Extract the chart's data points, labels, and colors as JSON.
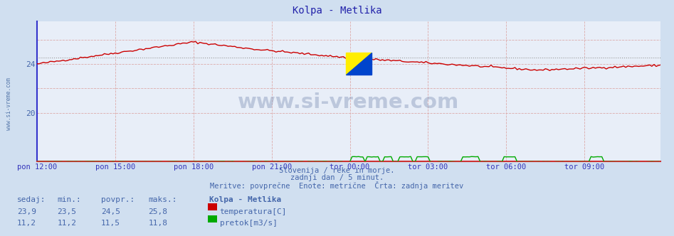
{
  "title": "Kolpa - Metlika",
  "bg_color": "#d0dff0",
  "plot_bg_color": "#e8eef8",
  "temp_color": "#cc0000",
  "flow_color": "#00aa00",
  "avg_line_color": "#999999",
  "x_label_color": "#3333bb",
  "title_color": "#2222aa",
  "text_color": "#4466aa",
  "spine_left_color": "#3333cc",
  "spine_bottom_color": "#cc3333",
  "grid_v_color": "#ddaaaa",
  "grid_h_color": "#ddaaaa",
  "n_points": 288,
  "x_ticks_labels": [
    "pon 12:00",
    "pon 15:00",
    "pon 18:00",
    "pon 21:00",
    "tor 00:00",
    "tor 03:00",
    "tor 06:00",
    "tor 09:00"
  ],
  "x_ticks_pos": [
    0,
    36,
    72,
    108,
    144,
    180,
    216,
    252
  ],
  "ylim_left": [
    16,
    27.5
  ],
  "yticks_left": [
    20,
    24
  ],
  "temp_avg": 24.5,
  "watermark": "www.si-vreme.com",
  "footer_line1": "Slovenija / reke in morje.",
  "footer_line2": "zadnji dan / 5 minut.",
  "footer_line3": "Meritve: povprečne  Enote: metrične  Črta: zadnja meritev",
  "legend_title": "Kolpa - Metlika",
  "legend_temp_label": "temperatura[C]",
  "legend_flow_label": "pretok[m3/s]",
  "stats_headers": [
    "sedaj:",
    "min.:",
    "povpr.:",
    "maks.:"
  ],
  "stats_temp": [
    "23,9",
    "23,5",
    "24,5",
    "25,8"
  ],
  "stats_flow": [
    "11,2",
    "11,2",
    "11,5",
    "11,8"
  ],
  "logo_yellow": "#ffee00",
  "logo_cyan": "#00ccff",
  "logo_blue": "#0044cc"
}
